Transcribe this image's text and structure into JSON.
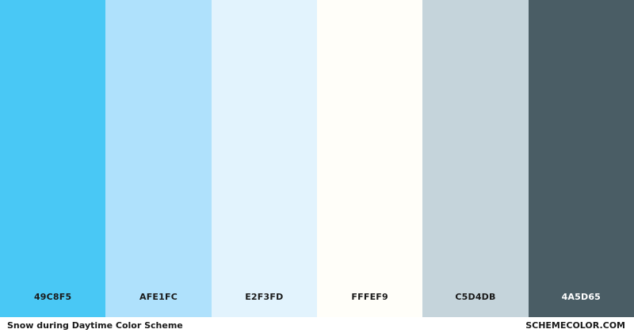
{
  "palette": {
    "swatches": [
      {
        "hex_label": "49C8F5",
        "color": "#49C8F5",
        "text_color": "#1a1a1a"
      },
      {
        "hex_label": "AFE1FC",
        "color": "#AFE1FC",
        "text_color": "#1a1a1a"
      },
      {
        "hex_label": "E2F3FD",
        "color": "#E2F3FD",
        "text_color": "#1a1a1a"
      },
      {
        "hex_label": "FFFEF9",
        "color": "#FFFEF9",
        "text_color": "#1a1a1a"
      },
      {
        "hex_label": "C5D4DB",
        "color": "#C5D4DB",
        "text_color": "#1a1a1a"
      },
      {
        "hex_label": "4A5D65",
        "color": "#4A5D65",
        "text_color": "#ffffff"
      }
    ]
  },
  "footer": {
    "scheme_title": "Snow during Daytime Color Scheme",
    "site_name": "SCHEMECOLOR.COM"
  }
}
